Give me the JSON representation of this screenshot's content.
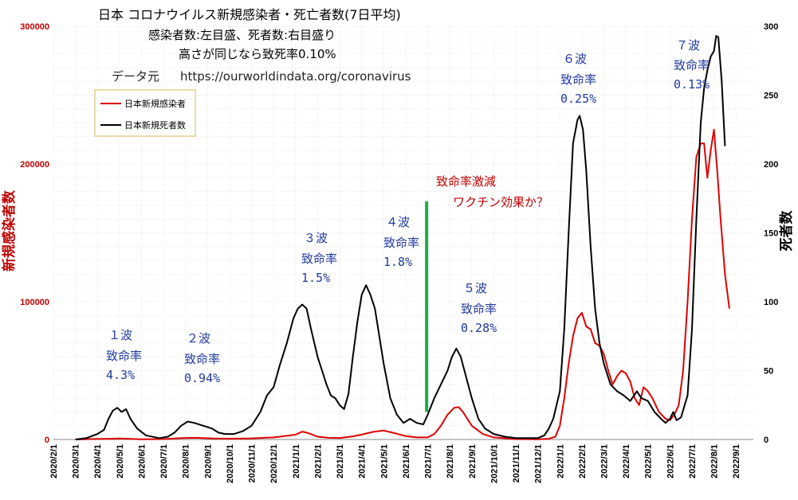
{
  "chart_data": {
    "type": "line",
    "title": "日本 コロナウイルス新規感染者・死亡者数(7日平均)",
    "subtitle_lines": [
      "感染者数:左目盛、死者数:右目盛り",
      "高さが同じなら致死率0.10%"
    ],
    "source_label": "データ元",
    "source_url": "https://ourworldindata.org/coronavirus",
    "ylabel_left": "新規感染者数",
    "ylabel_right": "死者数",
    "ylim_left": [
      0,
      300000
    ],
    "ylim_right": [
      0,
      300
    ],
    "yticks_left": [
      "0",
      "100000",
      "200000",
      "300000"
    ],
    "yticks_right": [
      "0",
      "50",
      "100",
      "150",
      "200",
      "250",
      "300"
    ],
    "x_ticks": [
      "2020/2/1",
      "2020/3/1",
      "2020/4/1",
      "2020/5/1",
      "2020/6/1",
      "2020/7/1",
      "2020/8/1",
      "2020/9/1",
      "2020/10/1",
      "2020/11/1",
      "2020/12/1",
      "2021/1/1",
      "2021/2/1",
      "2021/3/1",
      "2021/4/1",
      "2021/5/1",
      "2021/6/1",
      "2021/7/1",
      "2021/8/1",
      "2021/9/1",
      "2021/10/1",
      "2021/11/1",
      "2021/12/1",
      "2022/1/1",
      "2022/2/1",
      "2022/3/1",
      "2022/4/1",
      "2022/5/1",
      "2022/6/1",
      "2022/7/1",
      "2022/8/1",
      "2022/9/1"
    ],
    "x_unit": "months since 2020/2/1",
    "grid": true,
    "legend_position": "top-left",
    "series": [
      {
        "name": "日本新規感染者",
        "axis": "left",
        "color": "#e00000",
        "points": [
          [
            1,
            0
          ],
          [
            2,
            400
          ],
          [
            2.5,
            500
          ],
          [
            3,
            700
          ],
          [
            3.3,
            600
          ],
          [
            4,
            200
          ],
          [
            5,
            300
          ],
          [
            5.8,
            1000
          ],
          [
            6.5,
            1200
          ],
          [
            7.3,
            700
          ],
          [
            8,
            600
          ],
          [
            9,
            800
          ],
          [
            10,
            1500
          ],
          [
            10.5,
            2500
          ],
          [
            11,
            3500
          ],
          [
            11.3,
            5700
          ],
          [
            11.6,
            4500
          ],
          [
            12,
            2000
          ],
          [
            12.5,
            1200
          ],
          [
            13,
            1100
          ],
          [
            13.5,
            2000
          ],
          [
            14,
            3500
          ],
          [
            14.5,
            5500
          ],
          [
            15,
            6500
          ],
          [
            15.4,
            5000
          ],
          [
            16,
            2500
          ],
          [
            16.5,
            1500
          ],
          [
            17,
            1500
          ],
          [
            17.3,
            4000
          ],
          [
            17.6,
            10000
          ],
          [
            17.9,
            18000
          ],
          [
            18.2,
            23000
          ],
          [
            18.4,
            23500
          ],
          [
            18.6,
            20000
          ],
          [
            19,
            10000
          ],
          [
            19.5,
            4000
          ],
          [
            20,
            1500
          ],
          [
            21,
            300
          ],
          [
            22,
            200
          ],
          [
            22.5,
            500
          ],
          [
            22.8,
            2000
          ],
          [
            23,
            10000
          ],
          [
            23.2,
            30000
          ],
          [
            23.4,
            55000
          ],
          [
            23.6,
            75000
          ],
          [
            23.8,
            88000
          ],
          [
            24,
            92000
          ],
          [
            24.2,
            82000
          ],
          [
            24.4,
            80000
          ],
          [
            24.6,
            70000
          ],
          [
            24.8,
            68000
          ],
          [
            25,
            62000
          ],
          [
            25.2,
            50000
          ],
          [
            25.4,
            40000
          ],
          [
            25.6,
            46000
          ],
          [
            25.8,
            50000
          ],
          [
            26,
            48000
          ],
          [
            26.2,
            42000
          ],
          [
            26.4,
            30000
          ],
          [
            26.6,
            25000
          ],
          [
            26.8,
            38000
          ],
          [
            27,
            35000
          ],
          [
            27.2,
            30000
          ],
          [
            27.5,
            20000
          ],
          [
            27.8,
            15000
          ],
          [
            28,
            14000
          ],
          [
            28.2,
            18000
          ],
          [
            28.4,
            25000
          ],
          [
            28.6,
            50000
          ],
          [
            28.8,
            100000
          ],
          [
            29,
            160000
          ],
          [
            29.2,
            205000
          ],
          [
            29.4,
            215000
          ],
          [
            29.55,
            215000
          ],
          [
            29.7,
            190000
          ],
          [
            29.85,
            210000
          ],
          [
            30,
            225000
          ],
          [
            30.15,
            195000
          ],
          [
            30.3,
            160000
          ],
          [
            30.5,
            120000
          ],
          [
            30.7,
            95000
          ]
        ]
      },
      {
        "name": "日本新規死者数",
        "axis": "right",
        "color": "#000000",
        "points": [
          [
            1,
            0
          ],
          [
            1.5,
            1
          ],
          [
            2,
            4
          ],
          [
            2.3,
            7
          ],
          [
            2.5,
            15
          ],
          [
            2.7,
            21
          ],
          [
            2.9,
            23
          ],
          [
            3.1,
            20
          ],
          [
            3.3,
            22
          ],
          [
            3.5,
            15
          ],
          [
            3.8,
            8
          ],
          [
            4.2,
            3
          ],
          [
            4.8,
            1
          ],
          [
            5.2,
            2
          ],
          [
            5.5,
            5
          ],
          [
            5.8,
            10
          ],
          [
            6.1,
            13
          ],
          [
            6.4,
            12
          ],
          [
            6.8,
            10
          ],
          [
            7.2,
            8
          ],
          [
            7.5,
            5
          ],
          [
            7.8,
            4
          ],
          [
            8.2,
            4
          ],
          [
            8.6,
            6
          ],
          [
            9,
            10
          ],
          [
            9.4,
            20
          ],
          [
            9.7,
            32
          ],
          [
            10,
            38
          ],
          [
            10.3,
            55
          ],
          [
            10.6,
            70
          ],
          [
            10.9,
            88
          ],
          [
            11.1,
            95
          ],
          [
            11.3,
            98
          ],
          [
            11.5,
            95
          ],
          [
            11.7,
            80
          ],
          [
            12,
            60
          ],
          [
            12.2,
            50
          ],
          [
            12.4,
            40
          ],
          [
            12.6,
            32
          ],
          [
            12.8,
            30
          ],
          [
            13,
            25
          ],
          [
            13.2,
            22
          ],
          [
            13.4,
            33
          ],
          [
            13.6,
            60
          ],
          [
            13.8,
            85
          ],
          [
            14,
            105
          ],
          [
            14.2,
            112
          ],
          [
            14.4,
            105
          ],
          [
            14.6,
            95
          ],
          [
            14.8,
            75
          ],
          [
            15,
            55
          ],
          [
            15.3,
            30
          ],
          [
            15.6,
            18
          ],
          [
            15.9,
            12
          ],
          [
            16.2,
            15
          ],
          [
            16.5,
            12
          ],
          [
            16.8,
            11
          ],
          [
            17,
            18
          ],
          [
            17.3,
            30
          ],
          [
            17.6,
            40
          ],
          [
            17.9,
            50
          ],
          [
            18.1,
            60
          ],
          [
            18.3,
            66
          ],
          [
            18.5,
            60
          ],
          [
            18.7,
            48
          ],
          [
            19,
            30
          ],
          [
            19.3,
            15
          ],
          [
            19.6,
            8
          ],
          [
            20,
            4
          ],
          [
            20.5,
            2
          ],
          [
            21,
            1
          ],
          [
            22,
            1
          ],
          [
            22.3,
            3
          ],
          [
            22.5,
            8
          ],
          [
            22.7,
            15
          ],
          [
            23,
            35
          ],
          [
            23.2,
            80
          ],
          [
            23.4,
            150
          ],
          [
            23.6,
            215
          ],
          [
            23.8,
            232
          ],
          [
            23.9,
            235
          ],
          [
            24.05,
            225
          ],
          [
            24.2,
            195
          ],
          [
            24.4,
            140
          ],
          [
            24.6,
            95
          ],
          [
            24.8,
            70
          ],
          [
            25,
            55
          ],
          [
            25.3,
            40
          ],
          [
            25.6,
            35
          ],
          [
            25.9,
            32
          ],
          [
            26.2,
            28
          ],
          [
            26.5,
            35
          ],
          [
            26.7,
            30
          ],
          [
            27,
            28
          ],
          [
            27.3,
            20
          ],
          [
            27.6,
            15
          ],
          [
            27.8,
            12
          ],
          [
            28,
            15
          ],
          [
            28.15,
            20
          ],
          [
            28.3,
            14
          ],
          [
            28.5,
            16
          ],
          [
            28.8,
            32
          ],
          [
            29,
            80
          ],
          [
            29.2,
            160
          ],
          [
            29.4,
            230
          ],
          [
            29.55,
            255
          ],
          [
            29.7,
            268
          ],
          [
            29.85,
            278
          ],
          [
            30,
            282
          ],
          [
            30.1,
            293
          ],
          [
            30.2,
            292
          ],
          [
            30.35,
            260
          ],
          [
            30.5,
            213
          ]
        ]
      }
    ],
    "legend": [
      "日本新規感染者",
      "日本新規死者数"
    ],
    "divider_line": {
      "color": "#22aa44",
      "x": 16.95,
      "y_left_top": 173000,
      "y_left_bottom": 20000
    },
    "annotations": [
      {
        "lines": [
          "１波",
          "致命率",
          "4.3%"
        ],
        "color": "blue"
      },
      {
        "lines": [
          "２波",
          "致命率",
          "0.94%"
        ],
        "color": "blue"
      },
      {
        "lines": [
          "３波",
          "致命率",
          "1.5%"
        ],
        "color": "blue"
      },
      {
        "lines": [
          "４波",
          "致命率",
          "1.8%"
        ],
        "color": "blue"
      },
      {
        "lines": [
          "致命率激減",
          "ワクチン効果か？"
        ],
        "color": "red"
      },
      {
        "lines": [
          "５波",
          "致命率",
          "0.28%"
        ],
        "color": "blue"
      },
      {
        "lines": [
          "６波",
          "致命率",
          "0.25%"
        ],
        "color": "blue"
      },
      {
        "lines": [
          "７波",
          "致命率",
          "0.13%"
        ],
        "color": "blue"
      }
    ]
  }
}
